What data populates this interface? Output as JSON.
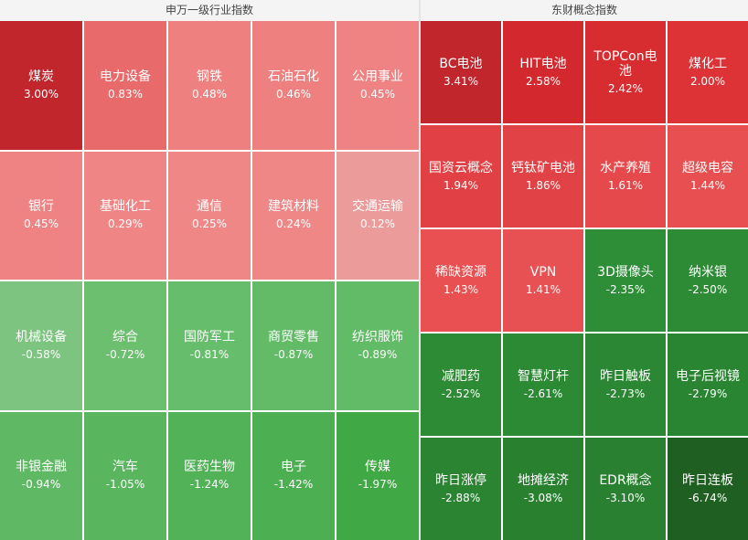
{
  "chart_data": [
    {
      "type": "heatmap",
      "title": "申万一级行业指数",
      "columns": 5,
      "unit": "%",
      "tiles": [
        {
          "name": "煤炭",
          "value_text": "3.00%",
          "value": 3.0,
          "color": "#c0262c"
        },
        {
          "name": "电力设备",
          "value_text": "0.83%",
          "value": 0.83,
          "color": "#e86a6b"
        },
        {
          "name": "钢铁",
          "value_text": "0.48%",
          "value": 0.48,
          "color": "#ef8080"
        },
        {
          "name": "石油石化",
          "value_text": "0.46%",
          "value": 0.46,
          "color": "#ef8080"
        },
        {
          "name": "公用事业",
          "value_text": "0.45%",
          "value": 0.45,
          "color": "#ef8282"
        },
        {
          "name": "银行",
          "value_text": "0.45%",
          "value": 0.45,
          "color": "#ef8282"
        },
        {
          "name": "基础化工",
          "value_text": "0.29%",
          "value": 0.29,
          "color": "#ef8585"
        },
        {
          "name": "通信",
          "value_text": "0.25%",
          "value": 0.25,
          "color": "#ef8787"
        },
        {
          "name": "建筑材料",
          "value_text": "0.24%",
          "value": 0.24,
          "color": "#ef8787"
        },
        {
          "name": "交通运输",
          "value_text": "0.12%",
          "value": 0.12,
          "color": "#ec9b9b"
        },
        {
          "name": "机械设备",
          "value_text": "-0.58%",
          "value": -0.58,
          "color": "#7cc47f"
        },
        {
          "name": "综合",
          "value_text": "-0.72%",
          "value": -0.72,
          "color": "#6bbf6f"
        },
        {
          "name": "国防军工",
          "value_text": "-0.81%",
          "value": -0.81,
          "color": "#66bd6b"
        },
        {
          "name": "商贸零售",
          "value_text": "-0.87%",
          "value": -0.87,
          "color": "#63bb68"
        },
        {
          "name": "纺织服饰",
          "value_text": "-0.89%",
          "value": -0.89,
          "color": "#62bb66"
        },
        {
          "name": "非银金融",
          "value_text": "-0.94%",
          "value": -0.94,
          "color": "#5fb964"
        },
        {
          "name": "汽车",
          "value_text": "-1.05%",
          "value": -1.05,
          "color": "#59b65e"
        },
        {
          "name": "医药生物",
          "value_text": "-1.24%",
          "value": -1.24,
          "color": "#52b257"
        },
        {
          "name": "电子",
          "value_text": "-1.42%",
          "value": -1.42,
          "color": "#4caf51"
        },
        {
          "name": "传媒",
          "value_text": "-1.97%",
          "value": -1.97,
          "color": "#40a845"
        }
      ]
    },
    {
      "type": "heatmap",
      "title": "东财概念指数",
      "columns": 4,
      "unit": "%",
      "tiles": [
        {
          "name": "BC电池",
          "value_text": "3.41%",
          "value": 3.41,
          "color": "#c0262c"
        },
        {
          "name": "HIT电池",
          "value_text": "2.58%",
          "value": 2.58,
          "color": "#d3292e"
        },
        {
          "name": "TOPCon电池",
          "value_text": "2.42%",
          "value": 2.42,
          "color": "#d72c30"
        },
        {
          "name": "煤化工",
          "value_text": "2.00%",
          "value": 2.0,
          "color": "#dd3336"
        },
        {
          "name": "国资云概念",
          "value_text": "1.94%",
          "value": 1.94,
          "color": "#e14044"
        },
        {
          "name": "钙钛矿电池",
          "value_text": "1.86%",
          "value": 1.86,
          "color": "#e14246"
        },
        {
          "name": "水产养殖",
          "value_text": "1.61%",
          "value": 1.61,
          "color": "#e6494b"
        },
        {
          "name": "超级电容",
          "value_text": "1.44%",
          "value": 1.44,
          "color": "#e84f51"
        },
        {
          "name": "稀缺资源",
          "value_text": "1.43%",
          "value": 1.43,
          "color": "#e85052"
        },
        {
          "name": "VPN",
          "value_text": "1.41%",
          "value": 1.41,
          "color": "#e85153"
        },
        {
          "name": "3D摄像头",
          "value_text": "-2.35%",
          "value": -2.35,
          "color": "#2e8e37"
        },
        {
          "name": "纳米银",
          "value_text": "-2.50%",
          "value": -2.5,
          "color": "#2d8b35"
        },
        {
          "name": "减肥药",
          "value_text": "-2.52%",
          "value": -2.52,
          "color": "#2d8b35"
        },
        {
          "name": "智慧灯杆",
          "value_text": "-2.61%",
          "value": -2.61,
          "color": "#2c8934"
        },
        {
          "name": "昨日触板",
          "value_text": "-2.73%",
          "value": -2.73,
          "color": "#2b8733"
        },
        {
          "name": "电子后视镜",
          "value_text": "-2.79%",
          "value": -2.79,
          "color": "#2a8532"
        },
        {
          "name": "昨日涨停",
          "value_text": "-2.88%",
          "value": -2.88,
          "color": "#2a8432"
        },
        {
          "name": "地摊经济",
          "value_text": "-3.08%",
          "value": -3.08,
          "color": "#298130"
        },
        {
          "name": "EDR概念",
          "value_text": "-3.10%",
          "value": -3.1,
          "color": "#298030"
        },
        {
          "name": "昨日连板",
          "value_text": "-6.74%",
          "value": -6.74,
          "color": "#1f5f22"
        }
      ]
    }
  ]
}
